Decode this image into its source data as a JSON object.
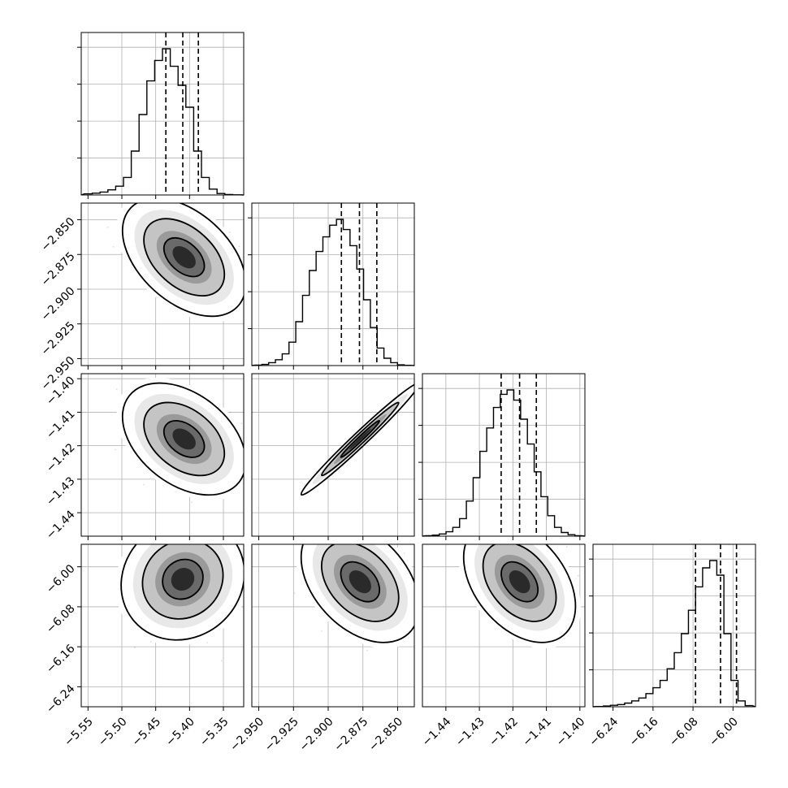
{
  "chart_data": {
    "type": "corner",
    "title": "",
    "grid": true,
    "parameters": [
      {
        "xlim": [
          -5.56,
          -5.32
        ],
        "ticks": [
          -5.55,
          -5.5,
          -5.45,
          -5.4,
          -5.35
        ],
        "tick_labels": [
          "−5.55",
          "−5.50",
          "−5.45",
          "−5.40",
          "−5.35"
        ],
        "quantiles": [
          -5.435,
          -5.41,
          -5.387
        ],
        "histogram": [
          0.008,
          0.012,
          0.02,
          0.035,
          0.06,
          0.12,
          0.3,
          0.55,
          0.78,
          0.92,
          1.0,
          0.88,
          0.75,
          0.6,
          0.3,
          0.12,
          0.04,
          0.01,
          0.003,
          0.001
        ]
      },
      {
        "xlim": [
          -2.955,
          -2.838
        ],
        "ticks": [
          -2.95,
          -2.925,
          -2.9,
          -2.875,
          -2.85
        ],
        "tick_labels": [
          "−2.950",
          "−2.925",
          "−2.900",
          "−2.875",
          "−2.850"
        ],
        "quantiles": [
          -2.8905,
          -2.8775,
          -2.865
        ],
        "histogram": [
          0.003,
          0.008,
          0.02,
          0.04,
          0.08,
          0.16,
          0.3,
          0.48,
          0.65,
          0.78,
          0.88,
          0.96,
          1.0,
          0.93,
          0.82,
          0.66,
          0.45,
          0.26,
          0.12,
          0.05,
          0.02,
          0.005,
          0.002
        ]
      },
      {
        "xlim": [
          -1.447,
          -1.3985
        ],
        "ticks": [
          -1.44,
          -1.43,
          -1.42,
          -1.41,
          -1.4
        ],
        "tick_labels": [
          "−1.44",
          "−1.43",
          "−1.42",
          "−1.41",
          "−1.40"
        ],
        "quantiles": [
          -1.4235,
          -1.418,
          -1.413
        ],
        "histogram": [
          0.003,
          0.007,
          0.015,
          0.03,
          0.06,
          0.12,
          0.24,
          0.4,
          0.58,
          0.74,
          0.88,
          0.97,
          1.0,
          0.93,
          0.8,
          0.63,
          0.44,
          0.27,
          0.14,
          0.06,
          0.025,
          0.01,
          0.003
        ]
      },
      {
        "xlim": [
          -6.28,
          -5.955
        ],
        "ticks": [
          -6.24,
          -6.16,
          -6.08,
          -6.0
        ],
        "tick_labels": [
          "−6.24",
          "−6.16",
          "−6.08",
          "−6.00"
        ],
        "quantiles": [
          -6.075,
          -6.025,
          -5.993
        ],
        "histogram": [
          0.002,
          0.005,
          0.01,
          0.015,
          0.025,
          0.04,
          0.06,
          0.09,
          0.13,
          0.18,
          0.26,
          0.37,
          0.5,
          0.66,
          0.82,
          0.95,
          1.0,
          0.9,
          0.5,
          0.18,
          0.04,
          0.008
        ]
      }
    ],
    "pairs": [
      {
        "row": 1,
        "col": 0,
        "mean": [
          -5.408,
          -2.877
        ],
        "sd": [
          0.03,
          0.014
        ],
        "corr": -0.45
      },
      {
        "row": 2,
        "col": 0,
        "mean": [
          -5.408,
          -1.418
        ],
        "sd": [
          0.03,
          0.0055
        ],
        "corr": -0.4
      },
      {
        "row": 2,
        "col": 1,
        "mean": [
          -2.877,
          -1.418
        ],
        "sd": [
          0.014,
          0.0055
        ],
        "corr": 0.985
      },
      {
        "row": 3,
        "col": 0,
        "mean": [
          -5.41,
          -6.025
        ],
        "sd": [
          0.03,
          0.04
        ],
        "corr": 0.1
      },
      {
        "row": 3,
        "col": 1,
        "mean": [
          -2.877,
          -6.03
        ],
        "sd": [
          0.014,
          0.04
        ],
        "corr": -0.4
      },
      {
        "row": 3,
        "col": 2,
        "mean": [
          -1.418,
          -6.03
        ],
        "sd": [
          0.0055,
          0.04
        ],
        "corr": -0.4
      }
    ]
  }
}
